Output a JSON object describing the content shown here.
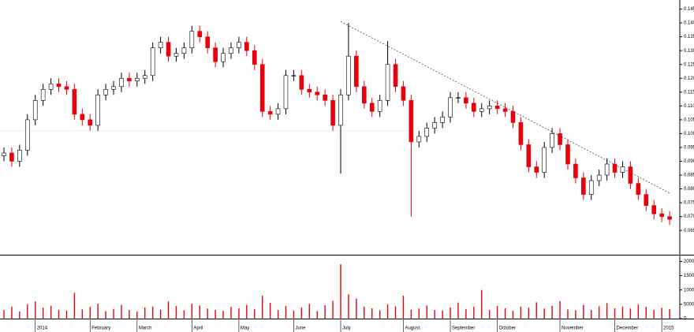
{
  "chart_data": {
    "type": "candlestick",
    "categories": [
      null,
      null,
      null,
      null,
      "2014",
      null,
      null,
      null,
      null,
      null,
      null,
      "February",
      null,
      null,
      null,
      null,
      null,
      "March",
      null,
      null,
      null,
      null,
      null,
      null,
      "April",
      null,
      null,
      null,
      null,
      null,
      "May",
      null,
      null,
      null,
      null,
      null,
      null,
      "June",
      null,
      null,
      null,
      null,
      null,
      "July",
      null,
      null,
      null,
      null,
      null,
      null,
      null,
      "August",
      null,
      null,
      null,
      null,
      null,
      "September",
      null,
      null,
      null,
      null,
      null,
      "October",
      null,
      null,
      null,
      null,
      null,
      null,
      null,
      "November",
      null,
      null,
      null,
      null,
      null,
      null,
      "December",
      null,
      null,
      null,
      null,
      null,
      "2015",
      null
    ],
    "open": [
      0.092,
      0.093,
      0.09,
      0.094,
      0.105,
      0.112,
      0.116,
      0.118,
      0.117,
      0.116,
      0.107,
      0.105,
      0.103,
      0.114,
      0.116,
      0.117,
      0.12,
      0.119,
      0.12,
      0.121,
      0.131,
      0.133,
      0.128,
      0.129,
      0.131,
      0.137,
      0.135,
      0.131,
      0.126,
      0.129,
      0.131,
      0.133,
      0.13,
      0.125,
      0.108,
      0.107,
      0.109,
      0.121,
      0.121,
      0.116,
      0.115,
      0.114,
      0.112,
      0.103,
      0.114,
      0.128,
      0.117,
      0.111,
      0.108,
      0.112,
      0.125,
      0.117,
      0.112,
      0.097,
      0.099,
      0.102,
      0.104,
      0.106,
      0.113,
      0.113,
      0.111,
      0.108,
      0.109,
      0.11,
      0.109,
      0.108,
      0.104,
      0.096,
      0.088,
      0.086,
      0.095,
      0.1,
      0.096,
      0.089,
      0.084,
      0.078,
      0.083,
      0.085,
      0.089,
      0.086,
      0.088,
      0.082,
      0.078,
      0.074,
      0.071,
      0.07
    ],
    "high": [
      0.095,
      0.095,
      0.096,
      0.107,
      0.114,
      0.118,
      0.12,
      0.12,
      0.119,
      0.118,
      0.109,
      0.107,
      0.116,
      0.118,
      0.119,
      0.122,
      0.122,
      0.122,
      0.123,
      0.133,
      0.135,
      0.135,
      0.131,
      0.133,
      0.139,
      0.139,
      0.137,
      0.133,
      0.131,
      0.133,
      0.135,
      0.135,
      0.132,
      0.127,
      0.11,
      0.111,
      0.123,
      0.123,
      0.123,
      0.118,
      0.117,
      0.116,
      0.114,
      0.116,
      0.14,
      0.13,
      0.119,
      0.113,
      0.114,
      0.1335,
      0.127,
      0.119,
      0.114,
      0.101,
      0.104,
      0.106,
      0.108,
      0.115,
      0.115,
      0.115,
      0.113,
      0.111,
      0.112,
      0.112,
      0.111,
      0.11,
      0.106,
      0.098,
      0.09,
      0.097,
      0.102,
      0.102,
      0.098,
      0.091,
      0.086,
      0.085,
      0.087,
      0.091,
      0.091,
      0.09,
      0.09,
      0.084,
      0.08,
      0.076,
      0.073,
      0.072
    ],
    "low": [
      0.09,
      0.088,
      0.088,
      0.092,
      0.103,
      0.11,
      0.114,
      0.115,
      0.114,
      0.105,
      0.103,
      0.101,
      0.101,
      0.112,
      0.114,
      0.115,
      0.117,
      0.117,
      0.118,
      0.119,
      0.129,
      0.126,
      0.126,
      0.127,
      0.129,
      0.133,
      0.129,
      0.124,
      0.124,
      0.127,
      0.129,
      0.128,
      0.123,
      0.106,
      0.105,
      0.105,
      0.107,
      0.119,
      0.114,
      0.113,
      0.112,
      0.11,
      0.101,
      0.0855,
      0.112,
      0.115,
      0.109,
      0.106,
      0.106,
      0.11,
      0.115,
      0.11,
      0.07,
      0.095,
      0.097,
      0.1,
      0.102,
      0.104,
      0.111,
      0.109,
      0.106,
      0.106,
      0.107,
      0.107,
      0.106,
      0.102,
      0.094,
      0.086,
      0.084,
      0.084,
      0.093,
      0.094,
      0.087,
      0.082,
      0.076,
      0.076,
      0.081,
      0.083,
      0.084,
      0.084,
      0.08,
      0.076,
      0.072,
      0.069,
      0.068,
      0.067
    ],
    "close": [
      0.093,
      0.09,
      0.094,
      0.105,
      0.112,
      0.116,
      0.118,
      0.117,
      0.116,
      0.107,
      0.105,
      0.103,
      0.114,
      0.116,
      0.117,
      0.12,
      0.119,
      0.12,
      0.121,
      0.131,
      0.133,
      0.128,
      0.129,
      0.131,
      0.137,
      0.135,
      0.131,
      0.126,
      0.129,
      0.131,
      0.133,
      0.13,
      0.125,
      0.108,
      0.107,
      0.109,
      0.121,
      0.121,
      0.116,
      0.115,
      0.114,
      0.112,
      0.103,
      0.114,
      0.128,
      0.117,
      0.111,
      0.108,
      0.112,
      0.125,
      0.117,
      0.112,
      0.097,
      0.099,
      0.102,
      0.104,
      0.106,
      0.113,
      0.113,
      0.111,
      0.108,
      0.109,
      0.11,
      0.109,
      0.108,
      0.104,
      0.096,
      0.088,
      0.086,
      0.095,
      0.1,
      0.096,
      0.089,
      0.084,
      0.078,
      0.083,
      0.085,
      0.089,
      0.086,
      0.088,
      0.082,
      0.078,
      0.074,
      0.071,
      0.07,
      0.069
    ],
    "volume": [
      3000,
      4200,
      2500,
      5000,
      6000,
      3800,
      4500,
      3000,
      2800,
      9000,
      3200,
      4100,
      5200,
      2600,
      3400,
      4800,
      3000,
      2500,
      3900,
      4200,
      3100,
      6000,
      4400,
      2900,
      5200,
      4600,
      3500,
      3000,
      2700,
      4100,
      3600,
      4800,
      3300,
      8000,
      5500,
      3000,
      4400,
      2800,
      3900,
      5100,
      2600,
      4700,
      6200,
      19000,
      8500,
      7000,
      4200,
      3600,
      2900,
      5000,
      4300,
      8000,
      3100,
      3500,
      4600,
      3000,
      2800,
      3900,
      5600,
      3300,
      4100,
      10000,
      3000,
      4400,
      3600,
      2700,
      4200,
      3800,
      5700,
      3500,
      4500,
      6100,
      3200,
      2900,
      4800,
      3000,
      4300,
      5400,
      3600,
      4200,
      3500,
      4900,
      4100,
      3000,
      3800,
      3300
    ],
    "colors": {
      "up": "#ffffff",
      "down": "#e8000b",
      "outline": "#000000"
    },
    "ylim": [
      0.0565,
      0.1483
    ],
    "yticks": [
      0.065,
      {
        "value": 0.07,
        "label": "0.070"
      },
      0.075,
      {
        "value": 0.08,
        "label": "0.080"
      },
      0.085,
      {
        "value": 0.09,
        "label": "0.090"
      },
      0.095,
      {
        "value": 0.1,
        "label": "0.100"
      },
      0.105,
      {
        "value": 0.11,
        "label": "0.110"
      },
      0.115,
      {
        "value": 0.12,
        "label": "0.120"
      },
      0.125,
      {
        "value": 0.13,
        "label": "0.130"
      },
      0.135,
      {
        "value": 0.14,
        "label": "0.140"
      },
      0.145
    ],
    "y2lim": [
      0,
      21500
    ],
    "y2ticks": [
      0,
      5000,
      10000,
      15000,
      20000
    ],
    "trendline": {
      "x": [
        43,
        85
      ],
      "y": [
        0.1405,
        0.0785
      ]
    },
    "hline": 0.101
  }
}
